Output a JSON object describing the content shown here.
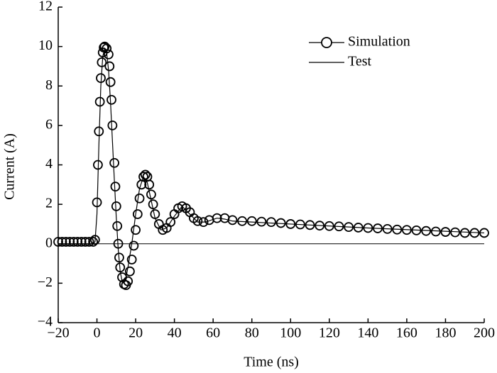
{
  "chart_data": {
    "type": "line",
    "xlabel": "Time (ns)",
    "ylabel": "Current (A)",
    "xlim": [
      -20,
      200
    ],
    "ylim": [
      -4,
      12
    ],
    "xticks": [
      {
        "value": -20,
        "label": "−20"
      },
      0,
      20,
      40,
      60,
      80,
      100,
      120,
      140,
      160,
      180,
      200
    ],
    "yticks": [
      {
        "value": -4,
        "label": "−4"
      },
      {
        "value": -2,
        "label": "−2"
      },
      0,
      2,
      4,
      6,
      8,
      10,
      12
    ],
    "legend": "upper right",
    "series": [
      {
        "name": "Simulation",
        "color": "#000000",
        "marker": "circle",
        "x": [
          -20,
          -18,
          -16,
          -14,
          -12,
          -10,
          -8,
          -6,
          -4,
          -2,
          -1,
          0,
          0.5,
          1,
          1.5,
          2,
          2.5,
          3,
          3.5,
          4,
          5,
          6,
          6.5,
          7,
          7.5,
          8,
          9,
          9.5,
          10,
          10.5,
          11,
          11.5,
          12,
          13,
          14,
          15,
          16,
          17,
          18,
          19,
          20,
          21,
          22,
          23,
          24,
          25,
          26,
          27,
          28,
          29,
          30,
          32,
          34,
          36,
          38,
          40,
          42,
          44,
          46,
          48,
          50,
          52,
          55,
          58,
          62,
          66,
          70,
          75,
          80,
          85,
          90,
          95,
          100,
          105,
          110,
          115,
          120,
          125,
          130,
          135,
          140,
          145,
          150,
          155,
          160,
          165,
          170,
          175,
          180,
          185,
          190,
          195,
          200
        ],
        "values": [
          0.1,
          0.1,
          0.1,
          0.1,
          0.1,
          0.1,
          0.1,
          0.1,
          0.1,
          0.1,
          0.2,
          2.1,
          4.0,
          5.7,
          7.2,
          8.4,
          9.2,
          9.7,
          9.95,
          10.0,
          9.9,
          9.6,
          9.0,
          8.2,
          7.3,
          6.0,
          4.1,
          2.9,
          1.9,
          0.9,
          0.0,
          -0.7,
          -1.2,
          -1.7,
          -2.05,
          -2.1,
          -1.9,
          -1.4,
          -0.8,
          -0.1,
          0.7,
          1.5,
          2.3,
          3.0,
          3.4,
          3.5,
          3.4,
          3.0,
          2.5,
          2.0,
          1.5,
          1.0,
          0.7,
          0.8,
          1.1,
          1.5,
          1.8,
          1.9,
          1.8,
          1.6,
          1.3,
          1.15,
          1.1,
          1.2,
          1.3,
          1.3,
          1.2,
          1.15,
          1.15,
          1.12,
          1.1,
          1.05,
          1.0,
          0.98,
          0.95,
          0.92,
          0.9,
          0.88,
          0.85,
          0.82,
          0.8,
          0.78,
          0.75,
          0.72,
          0.7,
          0.68,
          0.65,
          0.62,
          0.6,
          0.58,
          0.55,
          0.55,
          0.55
        ]
      },
      {
        "name": "Test",
        "color": "#000000",
        "x": [
          -20,
          -2,
          -1,
          0,
          1,
          2,
          3,
          4,
          5,
          6,
          7,
          8,
          9,
          10,
          11,
          12,
          13,
          14,
          15,
          16,
          18,
          20,
          22,
          24,
          26,
          28,
          30,
          33,
          36,
          40,
          44,
          48,
          52,
          56,
          62,
          66,
          70,
          80,
          100,
          140,
          200
        ],
        "values": [
          0,
          0,
          0.1,
          1.5,
          5,
          8,
          9.5,
          9.9,
          9.7,
          8.8,
          7.2,
          5.2,
          3.2,
          1.3,
          -0.3,
          -1.4,
          -1.9,
          -2.0,
          -1.7,
          -1.2,
          0,
          1.5,
          2.8,
          3.4,
          3.1,
          2.2,
          1.3,
          0.7,
          0.8,
          1.4,
          1.9,
          1.5,
          1.1,
          1.1,
          1.3,
          1.25,
          1.15,
          1.1,
          1.0,
          0.8,
          0.55
        ]
      }
    ]
  }
}
